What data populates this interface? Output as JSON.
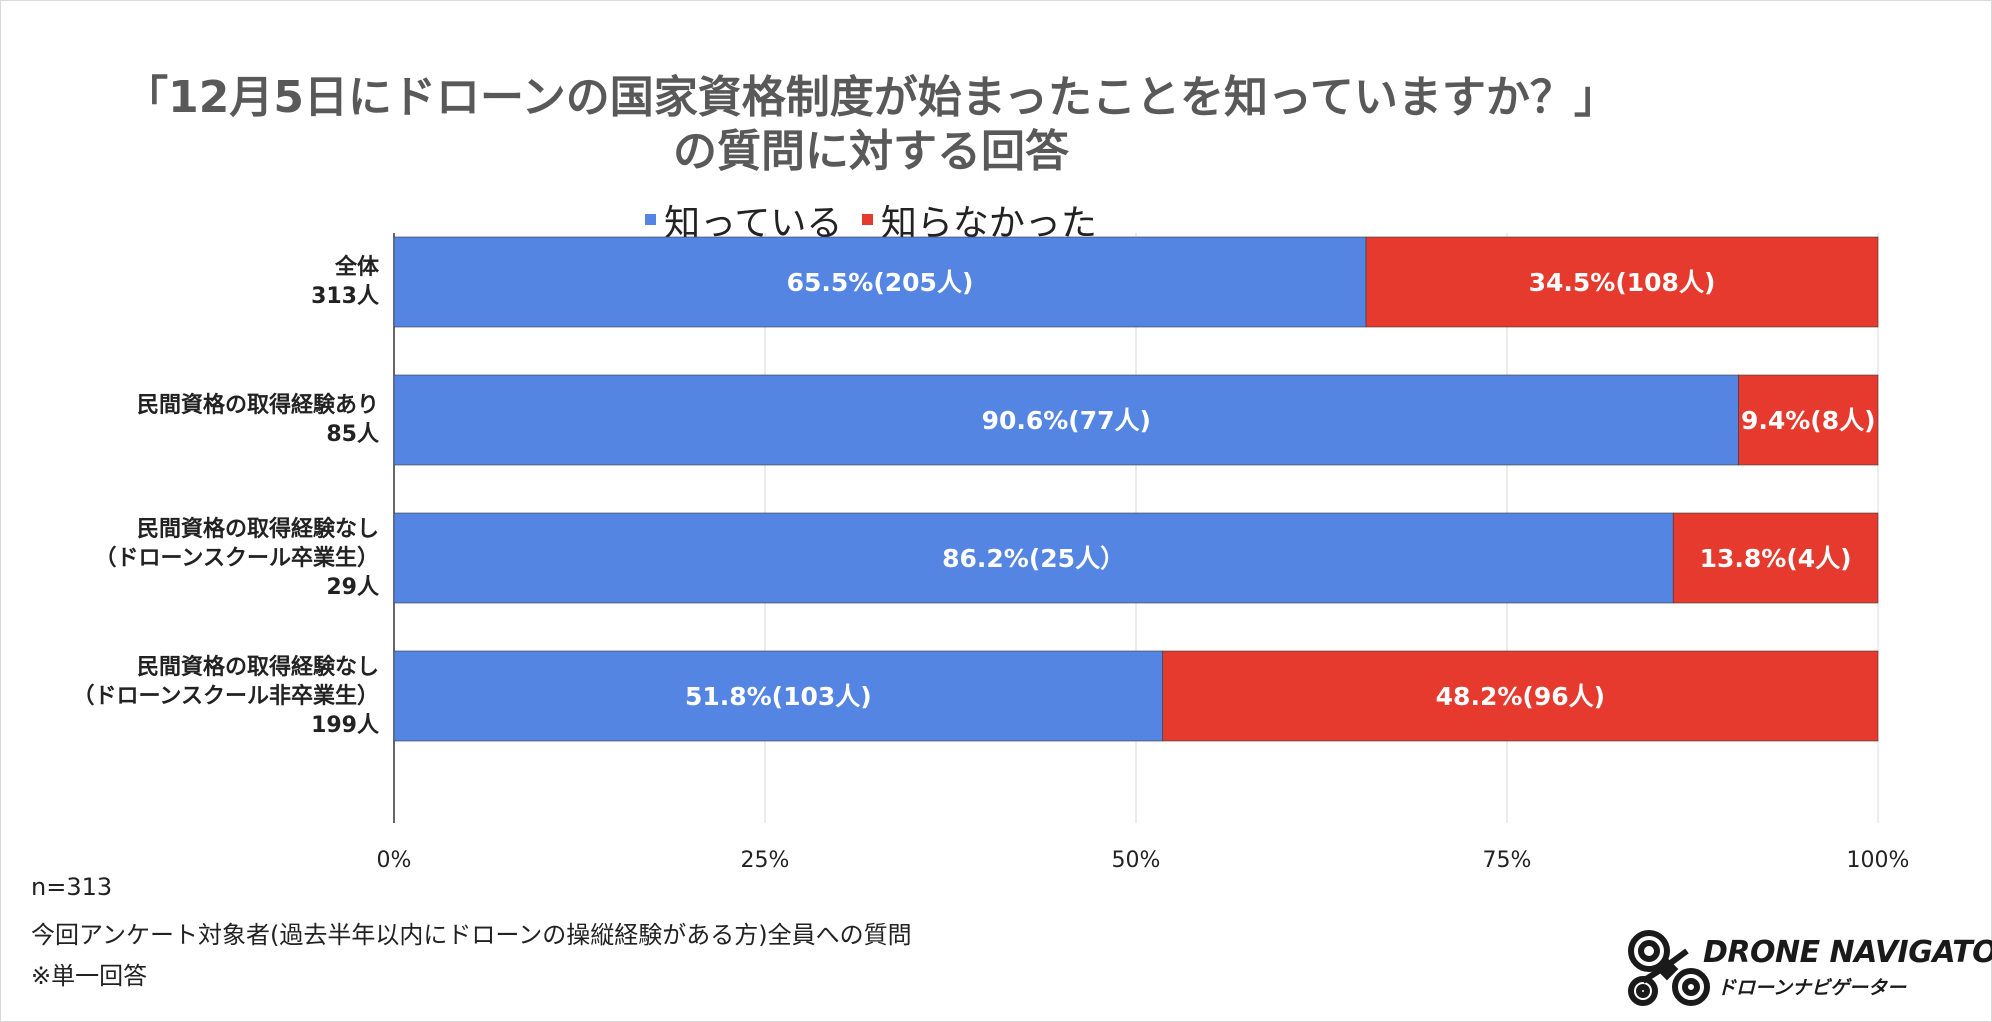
{
  "chart_data": {
    "type": "bar",
    "orientation": "horizontal",
    "stacked": "percent",
    "title": "「12月5日にドローンの国家資格制度が始まったことを知っていますか？」",
    "subtitle": "の質問に対する回答",
    "categories": [
      [
        "全体",
        "313人"
      ],
      [
        "民間資格の取得経験あり",
        "85人"
      ],
      [
        "民間資格の取得経験なし",
        "（ドローンスクール卒業生）",
        "29人"
      ],
      [
        "民間資格の取得経験なし",
        "（ドローンスクール非卒業生）",
        "199人"
      ]
    ],
    "series": [
      {
        "name": "知っている",
        "color": "#5585e3",
        "values": [
          65.5,
          90.6,
          86.2,
          51.8
        ],
        "labels": [
          "65.5%(205人)",
          "90.6%(77人)",
          "86.2%(25人）",
          "51.8%(103人)"
        ]
      },
      {
        "name": "知らなかった",
        "color": "#e63a2e",
        "values": [
          34.5,
          9.4,
          13.8,
          48.2
        ],
        "labels": [
          "34.5%(108人)",
          "9.4%(8人)",
          "13.8%(4人)",
          "48.2%(96人)"
        ]
      }
    ],
    "x_ticks": [
      "0%",
      "25%",
      "50%",
      "75%",
      "100%"
    ],
    "xlim": [
      0,
      100
    ],
    "grid": true,
    "legend_position": "top"
  },
  "footnotes": [
    "n=313",
    "今回アンケート対象者(過去半年以内にドローンの操縦経験がある方)全員への質問",
    "※単一回答"
  ],
  "logo": {
    "name": "DRONE NAVIGATOR",
    "sub": "ドローンナビゲーター"
  }
}
